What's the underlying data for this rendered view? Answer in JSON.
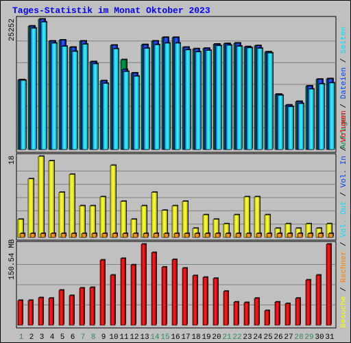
{
  "title": "Tages-Statistik im Monat Oktober 2023",
  "colors": {
    "background": "#C0C0C0",
    "plot": "#C0C0C0",
    "title": "#0000FF",
    "anfragen": "#008040",
    "dateien": "#0040FF",
    "seiten": "#00E0FF",
    "besuche": "#FFFF00",
    "rechner": "#FF8000",
    "volumen": "#FF0000",
    "weekday_label": "#000000",
    "weekend_label": "#2E8B57"
  },
  "panels": {
    "top": {
      "scale_label": "25252",
      "right_legend": [
        {
          "text": "Anfragen",
          "color": "#008040"
        },
        {
          "text": " / ",
          "color": "#000000"
        },
        {
          "text": "Dateien",
          "color": "#0040FF"
        },
        {
          "text": " / ",
          "color": "#000000"
        },
        {
          "text": "Seiten",
          "color": "#00E0FF"
        }
      ]
    },
    "middle": {
      "scale_label": "18",
      "right_legend": [
        {
          "text": "Besuche",
          "color": "#FFFF00"
        },
        {
          "text": " / ",
          "color": "#000000"
        },
        {
          "text": "Rechner",
          "color": "#FF8000"
        },
        {
          "text": " / ",
          "color": "#000000"
        },
        {
          "text": "Vol. Out",
          "color": "#00E0FF"
        },
        {
          "text": " / ",
          "color": "#000000"
        },
        {
          "text": "Vol. In",
          "color": "#0040FF"
        },
        {
          "text": " / ",
          "color": "#000000"
        },
        {
          "text": "Volumen",
          "color": "#FF0000"
        }
      ]
    },
    "bottom": {
      "scale_label": "150.54 MB"
    }
  },
  "chart_data": {
    "type": "bar",
    "categories": [
      "1",
      "2",
      "3",
      "4",
      "5",
      "6",
      "7",
      "8",
      "9",
      "10",
      "11",
      "12",
      "13",
      "14",
      "15",
      "16",
      "17",
      "18",
      "19",
      "20",
      "21",
      "22",
      "23",
      "24",
      "25",
      "26",
      "27",
      "28",
      "29",
      "30",
      "31"
    ],
    "weekend_days": [
      "1",
      "7",
      "8",
      "14",
      "15",
      "21",
      "22",
      "28",
      "29"
    ],
    "ylim_top": [
      0,
      25252
    ],
    "ylim_middle": [
      0,
      18
    ],
    "ylim_bottom": [
      0,
      150.54
    ],
    "series": [
      {
        "name": "Anfragen",
        "panel": "top",
        "values": [
          13500,
          23900,
          25252,
          21000,
          21200,
          19800,
          21000,
          17000,
          13300,
          20200,
          17400,
          14800,
          20300,
          21000,
          21700,
          21700,
          19800,
          19500,
          19600,
          20400,
          20500,
          20600,
          19900,
          20100,
          18900,
          10700,
          8600,
          9300,
          12300,
          13600,
          13700
        ]
      },
      {
        "name": "Dateien",
        "panel": "top",
        "values": [
          13500,
          23900,
          25252,
          21000,
          21200,
          19800,
          21000,
          17000,
          13300,
          20200,
          15500,
          14800,
          20300,
          21000,
          21700,
          21700,
          19800,
          19500,
          19600,
          20400,
          20500,
          20600,
          19900,
          20100,
          18900,
          10700,
          8600,
          9300,
          12300,
          13600,
          13700
        ]
      },
      {
        "name": "Seiten",
        "panel": "top",
        "values": [
          13400,
          23500,
          24700,
          20600,
          20000,
          19000,
          20400,
          16600,
          12800,
          19500,
          15100,
          14200,
          19600,
          20300,
          20600,
          20600,
          19300,
          18900,
          19200,
          20100,
          20200,
          20000,
          19700,
          19600,
          18700,
          10500,
          8300,
          8900,
          11700,
          12700,
          12900
        ]
      },
      {
        "name": "Besuche",
        "panel": "middle",
        "values": [
          4,
          13,
          18,
          17,
          10,
          14,
          7,
          7,
          9,
          16,
          8,
          4,
          7,
          10,
          6,
          7,
          8,
          2,
          5,
          4,
          3,
          5,
          9,
          9,
          5,
          2,
          3,
          2,
          3,
          2,
          3
        ]
      },
      {
        "name": "Rechner",
        "panel": "middle",
        "values": [
          1,
          1,
          1,
          1,
          1,
          1,
          1,
          1,
          1,
          1,
          1,
          1,
          1,
          1,
          1,
          1,
          1,
          1,
          1,
          1,
          1,
          1,
          1,
          1,
          1,
          1,
          1,
          1,
          1,
          1,
          1
        ]
      },
      {
        "name": "Volumen",
        "panel": "bottom",
        "values": [
          46,
          46,
          51,
          50,
          65,
          55,
          69,
          70,
          121,
          93,
          124,
          112,
          150.54,
          135,
          108,
          122,
          106,
          92,
          89,
          87,
          63,
          43,
          42,
          50,
          27,
          43,
          40,
          50,
          84,
          93,
          150.54
        ]
      }
    ]
  }
}
